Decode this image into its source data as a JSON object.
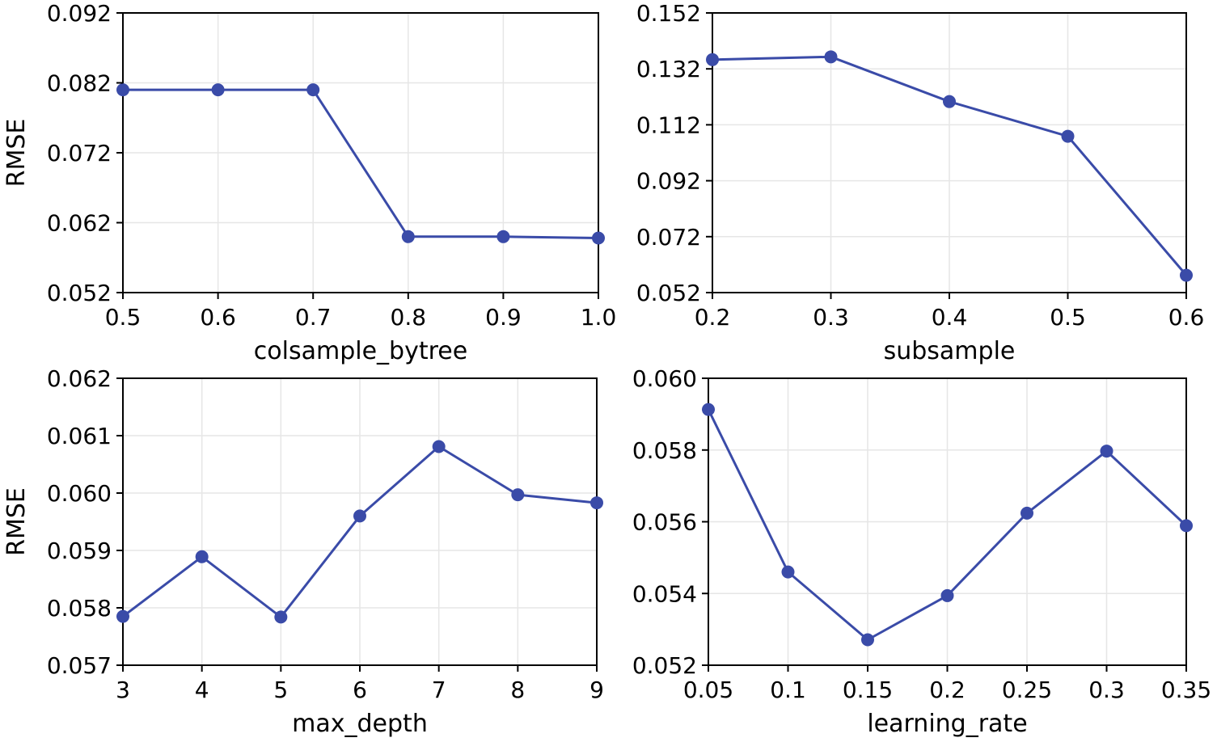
{
  "colors": {
    "line": "#3a4ba8",
    "grid": "#e6e6e6",
    "axis": "#000000"
  },
  "chart_data": [
    {
      "type": "line",
      "xlabel": "colsample_bytree",
      "ylabel": "RMSE",
      "x": [
        0.5,
        0.6,
        0.7,
        0.8,
        0.9,
        1.0
      ],
      "series": [
        {
          "name": "RMSE",
          "values": [
            0.081,
            0.081,
            0.081,
            0.06,
            0.06,
            0.0598
          ]
        }
      ],
      "xlim": [
        0.5,
        1.0
      ],
      "ylim": [
        0.052,
        0.092
      ],
      "xticks": [
        0.5,
        0.6,
        0.7,
        0.8,
        0.9,
        1.0
      ],
      "xtick_labels": [
        "0.5",
        "0.6",
        "0.7",
        "0.8",
        "0.9",
        "1.0"
      ],
      "yticks": [
        0.052,
        0.062,
        0.072,
        0.082,
        0.092
      ],
      "ytick_labels": [
        "0.052",
        "0.062",
        "0.072",
        "0.082",
        "0.092"
      ],
      "grid": true
    },
    {
      "type": "line",
      "xlabel": "subsample",
      "ylabel": "",
      "x": [
        0.2,
        0.3,
        0.4,
        0.5,
        0.6
      ],
      "series": [
        {
          "name": "RMSE",
          "values": [
            0.1353,
            0.1363,
            0.1203,
            0.1079,
            0.0582
          ]
        }
      ],
      "xlim": [
        0.2,
        0.6
      ],
      "ylim": [
        0.052,
        0.152
      ],
      "xticks": [
        0.2,
        0.3,
        0.4,
        0.5,
        0.6
      ],
      "xtick_labels": [
        "0.2",
        "0.3",
        "0.4",
        "0.5",
        "0.6"
      ],
      "yticks": [
        0.052,
        0.072,
        0.092,
        0.112,
        0.132,
        0.152
      ],
      "ytick_labels": [
        "0.052",
        "0.072",
        "0.092",
        "0.112",
        "0.132",
        "0.152"
      ],
      "grid": true
    },
    {
      "type": "line",
      "xlabel": "max_depth",
      "ylabel": "RMSE",
      "x": [
        3,
        4,
        5,
        6,
        7,
        8,
        9
      ],
      "series": [
        {
          "name": "RMSE",
          "values": [
            0.05785,
            0.05889,
            0.05784,
            0.0596,
            0.06081,
            0.05997,
            0.05983
          ]
        }
      ],
      "xlim": [
        3,
        9
      ],
      "ylim": [
        0.057,
        0.062
      ],
      "xticks": [
        3,
        4,
        5,
        6,
        7,
        8,
        9
      ],
      "xtick_labels": [
        "3",
        "4",
        "5",
        "6",
        "7",
        "8",
        "9"
      ],
      "yticks": [
        0.057,
        0.058,
        0.059,
        0.06,
        0.061,
        0.062
      ],
      "ytick_labels": [
        "0.057",
        "0.058",
        "0.059",
        "0.060",
        "0.061",
        "0.062"
      ],
      "grid": true
    },
    {
      "type": "line",
      "xlabel": "learning_rate",
      "ylabel": "",
      "x": [
        0.05,
        0.1,
        0.15,
        0.2,
        0.25,
        0.3,
        0.35
      ],
      "series": [
        {
          "name": "RMSE",
          "values": [
            0.05913,
            0.0546,
            0.05271,
            0.05394,
            0.05624,
            0.05797,
            0.05589
          ]
        }
      ],
      "xlim": [
        0.05,
        0.35
      ],
      "ylim": [
        0.052,
        0.06
      ],
      "xticks": [
        0.05,
        0.1,
        0.15,
        0.2,
        0.25,
        0.3,
        0.35
      ],
      "xtick_labels": [
        "0.05",
        "0.1",
        "0.15",
        "0.2",
        "0.25",
        "0.3",
        "0.35"
      ],
      "yticks": [
        0.052,
        0.054,
        0.056,
        0.058,
        0.06
      ],
      "ytick_labels": [
        "0.052",
        "0.054",
        "0.056",
        "0.058",
        "0.060"
      ],
      "grid": true
    }
  ]
}
